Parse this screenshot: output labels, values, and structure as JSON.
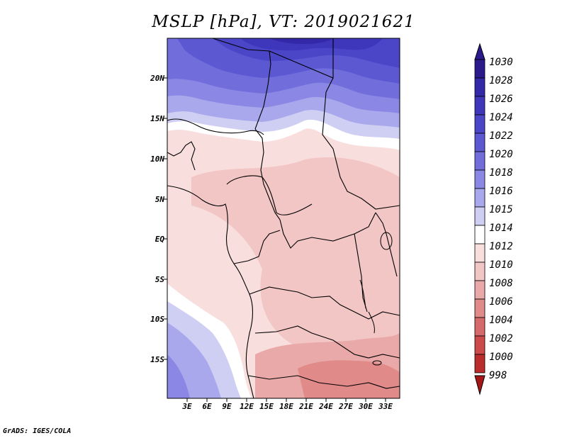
{
  "title": "MSLP [hPa], VT: 2019021621",
  "credit": "GrADS: IGES/COLA",
  "map": {
    "lat_labels": [
      "20N",
      "15N",
      "10N",
      "5N",
      "EQ",
      "5S",
      "10S",
      "15S"
    ],
    "lon_labels": [
      "3E",
      "6E",
      "9E",
      "12E",
      "15E",
      "18E",
      "21E",
      "24E",
      "27E",
      "30E",
      "33E"
    ],
    "regions": {
      "north_high": "high pressure over the Sahara and Sahel",
      "central_low": "lower pressure over Central Africa",
      "southern_low": "lowest pressure over Zambia and Angola",
      "atlantic_high": "higher pressure over the South Atlantic"
    }
  },
  "colorbar": {
    "levels": [
      "1030",
      "1028",
      "1026",
      "1024",
      "1022",
      "1020",
      "1018",
      "1016",
      "1015",
      "1014",
      "1012",
      "1010",
      "1008",
      "1006",
      "1004",
      "1002",
      "1000",
      "998"
    ],
    "colors": [
      "#2a1a8c",
      "#3228a8",
      "#3e36bb",
      "#4b46c8",
      "#5c58d2",
      "#716edc",
      "#8a88e4",
      "#a9a8ec",
      "#cfcff4",
      "#ffffff",
      "#f9dede",
      "#f3c6c6",
      "#eaa9a9",
      "#e08a8a",
      "#d66a6a",
      "#cc4a4a",
      "#bb2d2d",
      "#a51616"
    ]
  }
}
